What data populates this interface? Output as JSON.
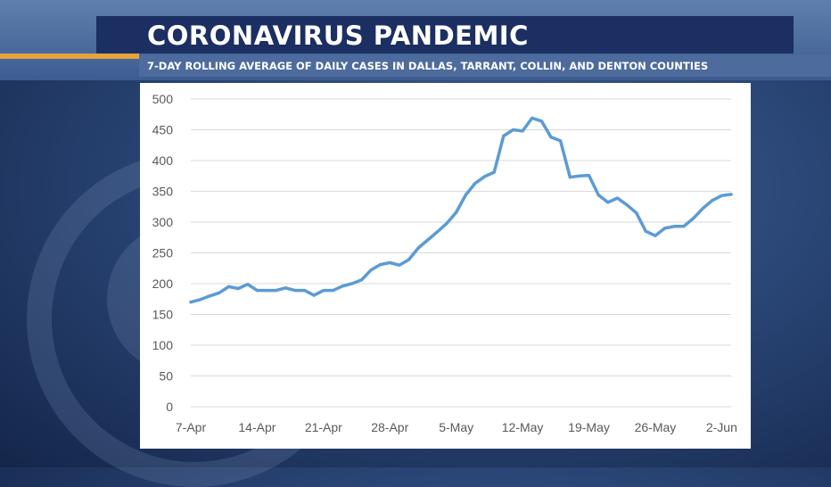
{
  "header": {
    "title": "CORONAVIRUS PANDEMIC",
    "subtitle": "7-DAY ROLLING AVERAGE OF DAILY CASES IN DALLAS, TARRANT, COLLIN, AND DENTON COUNTIES"
  },
  "colors": {
    "line": "#5b9bd5",
    "grid": "#d9d9d9",
    "header_bg": "#1c2f62",
    "accent": "#e8a23c"
  },
  "chart_data": {
    "type": "line",
    "title": "",
    "xlabel": "",
    "ylabel": "",
    "ylim": [
      0,
      500
    ],
    "y_ticks": [
      0,
      50,
      100,
      150,
      200,
      250,
      300,
      350,
      400,
      450,
      500
    ],
    "x_tick_labels": [
      "7-Apr",
      "14-Apr",
      "21-Apr",
      "28-Apr",
      "5-May",
      "12-May",
      "19-May",
      "26-May",
      "2-Jun"
    ],
    "grid": true,
    "legend": "none",
    "x": [
      "7-Apr",
      "8-Apr",
      "9-Apr",
      "10-Apr",
      "11-Apr",
      "12-Apr",
      "13-Apr",
      "14-Apr",
      "15-Apr",
      "16-Apr",
      "17-Apr",
      "18-Apr",
      "19-Apr",
      "20-Apr",
      "21-Apr",
      "22-Apr",
      "23-Apr",
      "24-Apr",
      "25-Apr",
      "26-Apr",
      "27-Apr",
      "28-Apr",
      "29-Apr",
      "30-Apr",
      "1-May",
      "2-May",
      "3-May",
      "4-May",
      "5-May",
      "6-May",
      "7-May",
      "8-May",
      "9-May",
      "10-May",
      "11-May",
      "12-May",
      "13-May",
      "14-May",
      "15-May",
      "16-May",
      "17-May",
      "18-May",
      "19-May",
      "20-May",
      "21-May",
      "22-May",
      "23-May",
      "24-May",
      "25-May",
      "26-May",
      "27-May",
      "28-May",
      "29-May",
      "30-May",
      "31-May",
      "1-Jun",
      "2-Jun",
      "3-Jun"
    ],
    "values": [
      170,
      174,
      180,
      185,
      195,
      192,
      199,
      189,
      189,
      189,
      193,
      189,
      189,
      181,
      189,
      189,
      196,
      200,
      206,
      222,
      231,
      234,
      230,
      239,
      258,
      271,
      284,
      298,
      316,
      344,
      363,
      374,
      381,
      440,
      450,
      448,
      469,
      464,
      438,
      432,
      373,
      375,
      376,
      344,
      332,
      339,
      328,
      315,
      285,
      278,
      290,
      293,
      293,
      306,
      322,
      335,
      343,
      345
    ]
  }
}
